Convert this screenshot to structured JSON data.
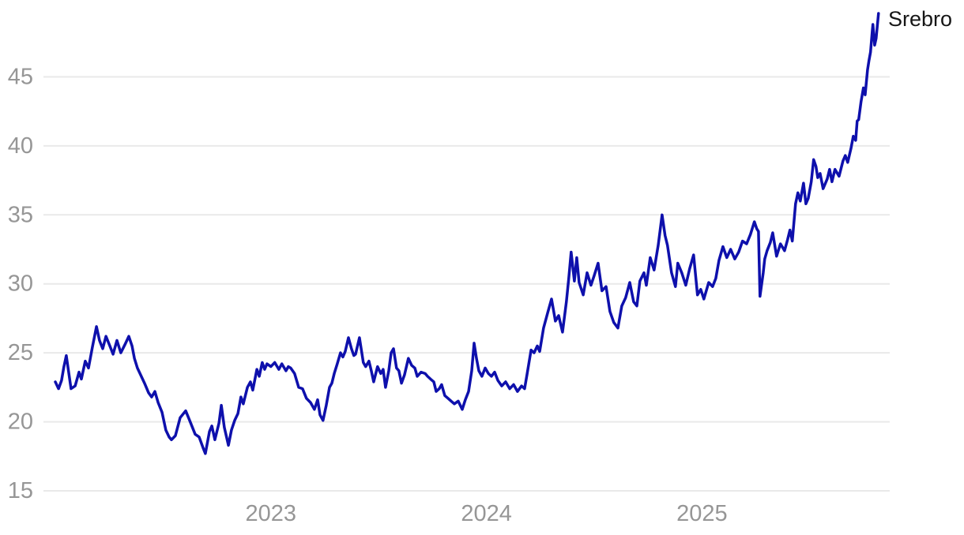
{
  "chart_data": {
    "type": "line",
    "title": "",
    "grid": "horizontal-only",
    "background_color": "#ffffff",
    "grid_color": "#e9e9e9",
    "axis_label_color": "#969696",
    "x_domain": [
      2021.945,
      2025.871
    ],
    "y_domain": [
      15,
      50
    ],
    "y_ticks": [
      15,
      20,
      25,
      30,
      35,
      40,
      45
    ],
    "x_ticks": [
      {
        "value": 2023,
        "label": "2023"
      },
      {
        "value": 2024,
        "label": "2024"
      },
      {
        "value": 2025,
        "label": "2025"
      }
    ],
    "series": [
      {
        "name": "Srebro",
        "color": "#0e10ac",
        "points": [
          [
            2022.0,
            22.9
          ],
          [
            2022.015,
            22.4
          ],
          [
            2022.029,
            23.0
          ],
          [
            2022.04,
            24.0
          ],
          [
            2022.051,
            24.8
          ],
          [
            2022.062,
            23.6
          ],
          [
            2022.073,
            22.4
          ],
          [
            2022.092,
            22.6
          ],
          [
            2022.11,
            23.6
          ],
          [
            2022.121,
            23.1
          ],
          [
            2022.139,
            24.4
          ],
          [
            2022.154,
            23.9
          ],
          [
            2022.172,
            25.4
          ],
          [
            2022.191,
            26.9
          ],
          [
            2022.205,
            25.9
          ],
          [
            2022.22,
            25.3
          ],
          [
            2022.235,
            26.2
          ],
          [
            2022.253,
            25.5
          ],
          [
            2022.268,
            24.9
          ],
          [
            2022.286,
            25.9
          ],
          [
            2022.304,
            25.0
          ],
          [
            2022.323,
            25.6
          ],
          [
            2022.341,
            26.2
          ],
          [
            2022.356,
            25.5
          ],
          [
            2022.367,
            24.6
          ],
          [
            2022.381,
            23.9
          ],
          [
            2022.396,
            23.4
          ],
          [
            2022.414,
            22.8
          ],
          [
            2022.433,
            22.1
          ],
          [
            2022.447,
            21.8
          ],
          [
            2022.462,
            22.2
          ],
          [
            2022.477,
            21.4
          ],
          [
            2022.495,
            20.7
          ],
          [
            2022.513,
            19.4
          ],
          [
            2022.528,
            18.9
          ],
          [
            2022.539,
            18.7
          ],
          [
            2022.557,
            19.0
          ],
          [
            2022.579,
            20.3
          ],
          [
            2022.605,
            20.8
          ],
          [
            2022.623,
            20.1
          ],
          [
            2022.649,
            19.1
          ],
          [
            2022.667,
            18.9
          ],
          [
            2022.686,
            18.1
          ],
          [
            2022.696,
            17.7
          ],
          [
            2022.715,
            19.3
          ],
          [
            2022.726,
            19.7
          ],
          [
            2022.74,
            18.7
          ],
          [
            2022.759,
            19.9
          ],
          [
            2022.77,
            21.2
          ],
          [
            2022.784,
            19.6
          ],
          [
            2022.803,
            18.3
          ],
          [
            2022.817,
            19.4
          ],
          [
            2022.832,
            20.1
          ],
          [
            2022.847,
            20.6
          ],
          [
            2022.861,
            21.8
          ],
          [
            2022.872,
            21.3
          ],
          [
            2022.891,
            22.5
          ],
          [
            2022.905,
            22.9
          ],
          [
            2022.916,
            22.3
          ],
          [
            2022.935,
            23.8
          ],
          [
            2022.946,
            23.3
          ],
          [
            2022.96,
            24.3
          ],
          [
            2022.971,
            23.8
          ],
          [
            2022.982,
            24.2
          ],
          [
            2023.0,
            24.0
          ],
          [
            2023.018,
            24.3
          ],
          [
            2023.037,
            23.8
          ],
          [
            2023.051,
            24.2
          ],
          [
            2023.07,
            23.7
          ],
          [
            2023.081,
            24.0
          ],
          [
            2023.092,
            23.9
          ],
          [
            2023.11,
            23.5
          ],
          [
            2023.129,
            22.5
          ],
          [
            2023.147,
            22.4
          ],
          [
            2023.165,
            21.7
          ],
          [
            2023.184,
            21.4
          ],
          [
            2023.202,
            20.9
          ],
          [
            2023.217,
            21.6
          ],
          [
            2023.228,
            20.5
          ],
          [
            2023.242,
            20.1
          ],
          [
            2023.257,
            21.2
          ],
          [
            2023.272,
            22.5
          ],
          [
            2023.283,
            22.8
          ],
          [
            2023.294,
            23.5
          ],
          [
            2023.308,
            24.2
          ],
          [
            2023.323,
            25.0
          ],
          [
            2023.334,
            24.7
          ],
          [
            2023.345,
            25.1
          ],
          [
            2023.36,
            26.1
          ],
          [
            2023.374,
            25.3
          ],
          [
            2023.385,
            24.8
          ],
          [
            2023.393,
            24.9
          ],
          [
            2023.411,
            26.1
          ],
          [
            2023.429,
            24.3
          ],
          [
            2023.44,
            24.0
          ],
          [
            2023.455,
            24.4
          ],
          [
            2023.466,
            23.7
          ],
          [
            2023.477,
            22.9
          ],
          [
            2023.495,
            24.0
          ],
          [
            2023.51,
            23.5
          ],
          [
            2023.521,
            23.8
          ],
          [
            2023.532,
            22.5
          ],
          [
            2023.547,
            23.7
          ],
          [
            2023.558,
            25.0
          ],
          [
            2023.569,
            25.3
          ],
          [
            2023.583,
            23.9
          ],
          [
            2023.594,
            23.7
          ],
          [
            2023.606,
            22.8
          ],
          [
            2023.62,
            23.4
          ],
          [
            2023.638,
            24.6
          ],
          [
            2023.653,
            24.1
          ],
          [
            2023.668,
            23.9
          ],
          [
            2023.679,
            23.3
          ],
          [
            2023.697,
            23.6
          ],
          [
            2023.716,
            23.5
          ],
          [
            2023.727,
            23.3
          ],
          [
            2023.741,
            23.1
          ],
          [
            2023.756,
            22.9
          ],
          [
            2023.767,
            22.2
          ],
          [
            2023.781,
            22.4
          ],
          [
            2023.792,
            22.7
          ],
          [
            2023.807,
            21.9
          ],
          [
            2023.822,
            21.7
          ],
          [
            2023.836,
            21.5
          ],
          [
            2023.851,
            21.3
          ],
          [
            2023.869,
            21.5
          ],
          [
            2023.888,
            20.9
          ],
          [
            2023.902,
            21.6
          ],
          [
            2023.917,
            22.2
          ],
          [
            2023.932,
            23.7
          ],
          [
            2023.943,
            25.7
          ],
          [
            2023.954,
            24.6
          ],
          [
            2023.965,
            23.7
          ],
          [
            2023.979,
            23.3
          ],
          [
            2023.994,
            23.9
          ],
          [
            2024.009,
            23.5
          ],
          [
            2024.023,
            23.3
          ],
          [
            2024.038,
            23.6
          ],
          [
            2024.053,
            23.0
          ],
          [
            2024.071,
            22.6
          ],
          [
            2024.089,
            22.9
          ],
          [
            2024.108,
            22.4
          ],
          [
            2024.126,
            22.7
          ],
          [
            2024.144,
            22.2
          ],
          [
            2024.163,
            22.6
          ],
          [
            2024.177,
            22.4
          ],
          [
            2024.188,
            23.4
          ],
          [
            2024.207,
            25.2
          ],
          [
            2024.221,
            25.0
          ],
          [
            2024.236,
            25.5
          ],
          [
            2024.247,
            25.1
          ],
          [
            2024.265,
            26.8
          ],
          [
            2024.284,
            27.9
          ],
          [
            2024.302,
            28.9
          ],
          [
            2024.32,
            27.3
          ],
          [
            2024.335,
            27.7
          ],
          [
            2024.353,
            26.5
          ],
          [
            2024.371,
            28.7
          ],
          [
            2024.382,
            30.4
          ],
          [
            2024.393,
            32.3
          ],
          [
            2024.408,
            30.2
          ],
          [
            2024.419,
            31.9
          ],
          [
            2024.43,
            30.1
          ],
          [
            2024.449,
            29.2
          ],
          [
            2024.467,
            30.8
          ],
          [
            2024.485,
            29.9
          ],
          [
            2024.5,
            30.6
          ],
          [
            2024.518,
            31.5
          ],
          [
            2024.536,
            29.5
          ],
          [
            2024.555,
            29.8
          ],
          [
            2024.573,
            28.0
          ],
          [
            2024.591,
            27.2
          ],
          [
            2024.61,
            26.8
          ],
          [
            2024.628,
            28.4
          ],
          [
            2024.646,
            29.0
          ],
          [
            2024.665,
            30.1
          ],
          [
            2024.683,
            28.7
          ],
          [
            2024.698,
            28.4
          ],
          [
            2024.712,
            30.2
          ],
          [
            2024.731,
            30.8
          ],
          [
            2024.742,
            29.9
          ],
          [
            2024.76,
            31.9
          ],
          [
            2024.778,
            31.0
          ],
          [
            2024.797,
            32.8
          ],
          [
            2024.815,
            35.0
          ],
          [
            2024.829,
            33.5
          ],
          [
            2024.84,
            32.8
          ],
          [
            2024.859,
            30.8
          ],
          [
            2024.877,
            29.8
          ],
          [
            2024.888,
            31.5
          ],
          [
            2024.906,
            30.8
          ],
          [
            2024.925,
            29.9
          ],
          [
            2024.943,
            31.1
          ],
          [
            2024.961,
            32.1
          ],
          [
            2024.979,
            29.2
          ],
          [
            2024.994,
            29.6
          ],
          [
            2025.009,
            28.9
          ],
          [
            2025.031,
            30.1
          ],
          [
            2025.049,
            29.8
          ],
          [
            2025.064,
            30.4
          ],
          [
            2025.079,
            31.7
          ],
          [
            2025.097,
            32.7
          ],
          [
            2025.115,
            31.9
          ],
          [
            2025.133,
            32.5
          ],
          [
            2025.152,
            31.8
          ],
          [
            2025.17,
            32.3
          ],
          [
            2025.188,
            33.1
          ],
          [
            2025.207,
            32.9
          ],
          [
            2025.225,
            33.6
          ],
          [
            2025.243,
            34.5
          ],
          [
            2025.254,
            34.0
          ],
          [
            2025.262,
            33.8
          ],
          [
            2025.269,
            29.1
          ],
          [
            2025.284,
            30.8
          ],
          [
            2025.291,
            31.8
          ],
          [
            2025.302,
            32.4
          ],
          [
            2025.317,
            33.0
          ],
          [
            2025.328,
            33.7
          ],
          [
            2025.346,
            32.0
          ],
          [
            2025.364,
            32.9
          ],
          [
            2025.383,
            32.4
          ],
          [
            2025.397,
            33.2
          ],
          [
            2025.408,
            33.9
          ],
          [
            2025.419,
            33.1
          ],
          [
            2025.434,
            35.8
          ],
          [
            2025.445,
            36.6
          ],
          [
            2025.456,
            36.0
          ],
          [
            2025.471,
            37.3
          ],
          [
            2025.482,
            35.8
          ],
          [
            2025.493,
            36.2
          ],
          [
            2025.507,
            37.4
          ],
          [
            2025.518,
            39.0
          ],
          [
            2025.529,
            38.5
          ],
          [
            2025.537,
            37.7
          ],
          [
            2025.548,
            38.0
          ],
          [
            2025.562,
            36.9
          ],
          [
            2025.581,
            37.6
          ],
          [
            2025.592,
            38.3
          ],
          [
            2025.603,
            37.4
          ],
          [
            2025.617,
            38.3
          ],
          [
            2025.636,
            37.8
          ],
          [
            2025.654,
            38.9
          ],
          [
            2025.665,
            39.3
          ],
          [
            2025.676,
            38.8
          ],
          [
            2025.691,
            39.8
          ],
          [
            2025.702,
            40.7
          ],
          [
            2025.713,
            40.4
          ],
          [
            2025.72,
            41.8
          ],
          [
            2025.727,
            41.9
          ],
          [
            2025.738,
            43.2
          ],
          [
            2025.749,
            44.2
          ],
          [
            2025.757,
            43.7
          ],
          [
            2025.768,
            45.5
          ],
          [
            2025.775,
            46.2
          ],
          [
            2025.782,
            46.8
          ],
          [
            2025.79,
            48.3
          ],
          [
            2025.793,
            48.8
          ],
          [
            2025.801,
            47.3
          ],
          [
            2025.808,
            47.8
          ],
          [
            2025.819,
            49.6
          ]
        ]
      }
    ]
  }
}
